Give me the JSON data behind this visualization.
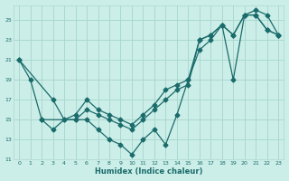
{
  "xlabel": "Humidex (Indice chaleur)",
  "xlim": [
    -0.5,
    23.5
  ],
  "ylim": [
    11,
    26.5
  ],
  "yticks": [
    11,
    13,
    15,
    17,
    19,
    21,
    23,
    25
  ],
  "xticks": [
    0,
    1,
    2,
    3,
    4,
    5,
    6,
    7,
    8,
    9,
    10,
    11,
    12,
    13,
    14,
    15,
    16,
    17,
    18,
    19,
    20,
    21,
    22,
    23
  ],
  "bg_color": "#cceee8",
  "grid_color": "#aad8d0",
  "line_color": "#1a6b6b",
  "line1_x": [
    0,
    1,
    2,
    3,
    4,
    5,
    6,
    7,
    8,
    9,
    10,
    11,
    12,
    13,
    14,
    15,
    16,
    17,
    18,
    19,
    20,
    21,
    22,
    23
  ],
  "line1_y": [
    21,
    19,
    15,
    14,
    15,
    15,
    15,
    14,
    13,
    12.5,
    11.5,
    13,
    14,
    12.5,
    15.5,
    19,
    22,
    23,
    24.5,
    19,
    25.5,
    26,
    25.5,
    23.5
  ],
  "line2_x": [
    0,
    3,
    4,
    5,
    6,
    7,
    8,
    9,
    10,
    11,
    12,
    13,
    14,
    15,
    16,
    17,
    18,
    19,
    20,
    21,
    22,
    23
  ],
  "line2_y": [
    21,
    17,
    15,
    15.5,
    17,
    16,
    15.5,
    15,
    14.5,
    15.5,
    16.5,
    18,
    18.5,
    19,
    23,
    23.5,
    24.5,
    23.5,
    25.5,
    25.5,
    24,
    23.5
  ],
  "line3_x": [
    2,
    5,
    6,
    7,
    8,
    9,
    10,
    11,
    12,
    13,
    14,
    15,
    16,
    17,
    18,
    19,
    20,
    21,
    22,
    23
  ],
  "line3_y": [
    15,
    15,
    16,
    15.5,
    15,
    14.5,
    14,
    15,
    16,
    17,
    18,
    18.5,
    23,
    23.5,
    24.5,
    23.5,
    25.5,
    25.5,
    24,
    23.5
  ],
  "marker": "D",
  "markersize": 2.5,
  "linewidth": 0.9
}
